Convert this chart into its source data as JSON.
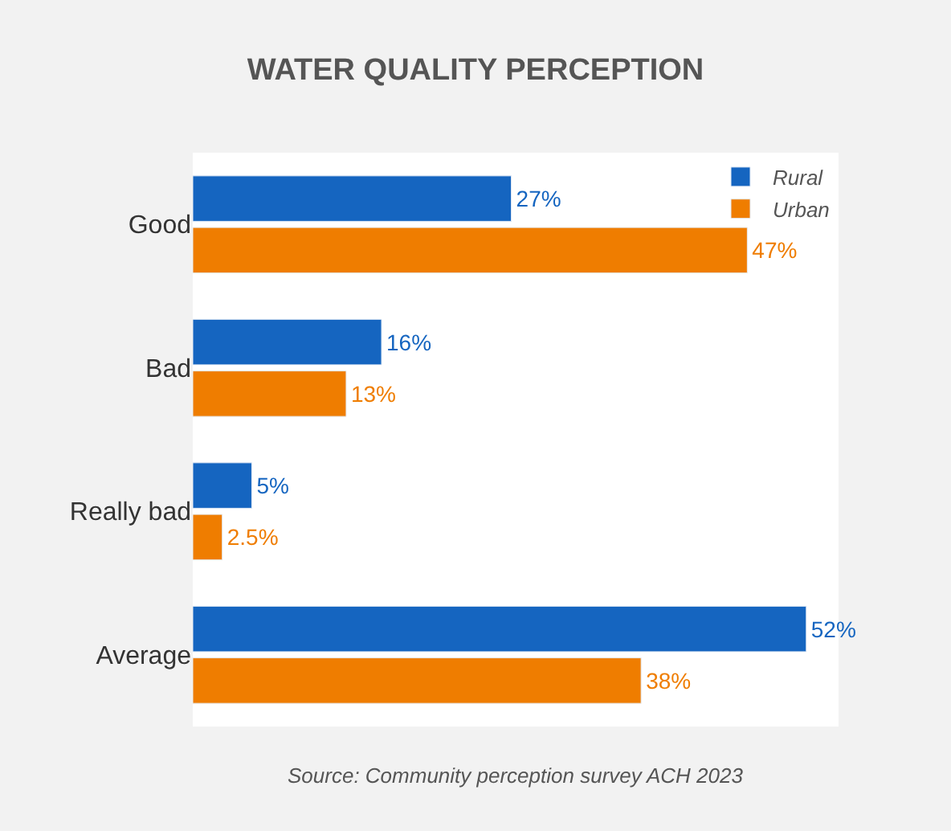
{
  "chart_data": {
    "type": "bar",
    "orientation": "horizontal",
    "title": "WATER QUALITY PERCEPTION",
    "categories": [
      "Good",
      "Bad",
      "Really bad",
      "Average"
    ],
    "series": [
      {
        "name": "Rural",
        "color": "#1565c0",
        "values": [
          27,
          16,
          5,
          52
        ],
        "value_labels": [
          "27%",
          "16%",
          "5%",
          "52%"
        ]
      },
      {
        "name": "Urban",
        "color": "#ef7d00",
        "values": [
          47,
          13,
          2.5,
          38
        ],
        "value_labels": [
          "47%",
          "13%",
          "2.5%",
          "38%"
        ]
      }
    ],
    "legend": "top right",
    "tick_labels": "y",
    "annotations": [
      "Source: Community perception survey ACH 2023"
    ]
  }
}
